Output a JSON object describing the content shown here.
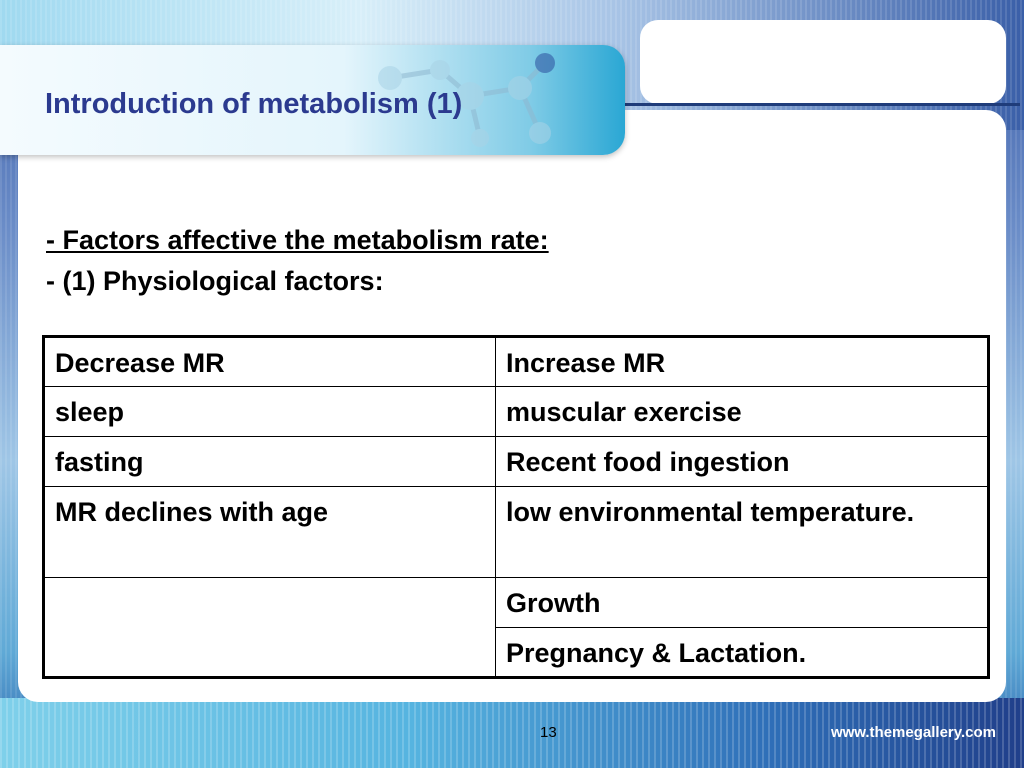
{
  "slide": {
    "title": "Introduction of metabolism (1)",
    "heading_underlined": "- Factors affective the metabolism rate:",
    "subheading": "- (1) Physiological factors:",
    "table": {
      "headers": [
        "Decrease MR",
        "Increase MR"
      ],
      "rows": [
        [
          "sleep",
          "muscular exercise"
        ],
        [
          "fasting",
          "Recent food ingestion"
        ],
        [
          "MR declines with age",
          "low environmental temperature."
        ],
        [
          "",
          "Growth"
        ],
        [
          "",
          "Pregnancy & Lactation."
        ]
      ]
    },
    "page_number": "13",
    "footer_site": "www.themegallery.com"
  },
  "theme": {
    "title_color": "#2b3a8f",
    "accent_blue": "#1f3c7a",
    "icons": [
      "molecule-decoration"
    ]
  }
}
